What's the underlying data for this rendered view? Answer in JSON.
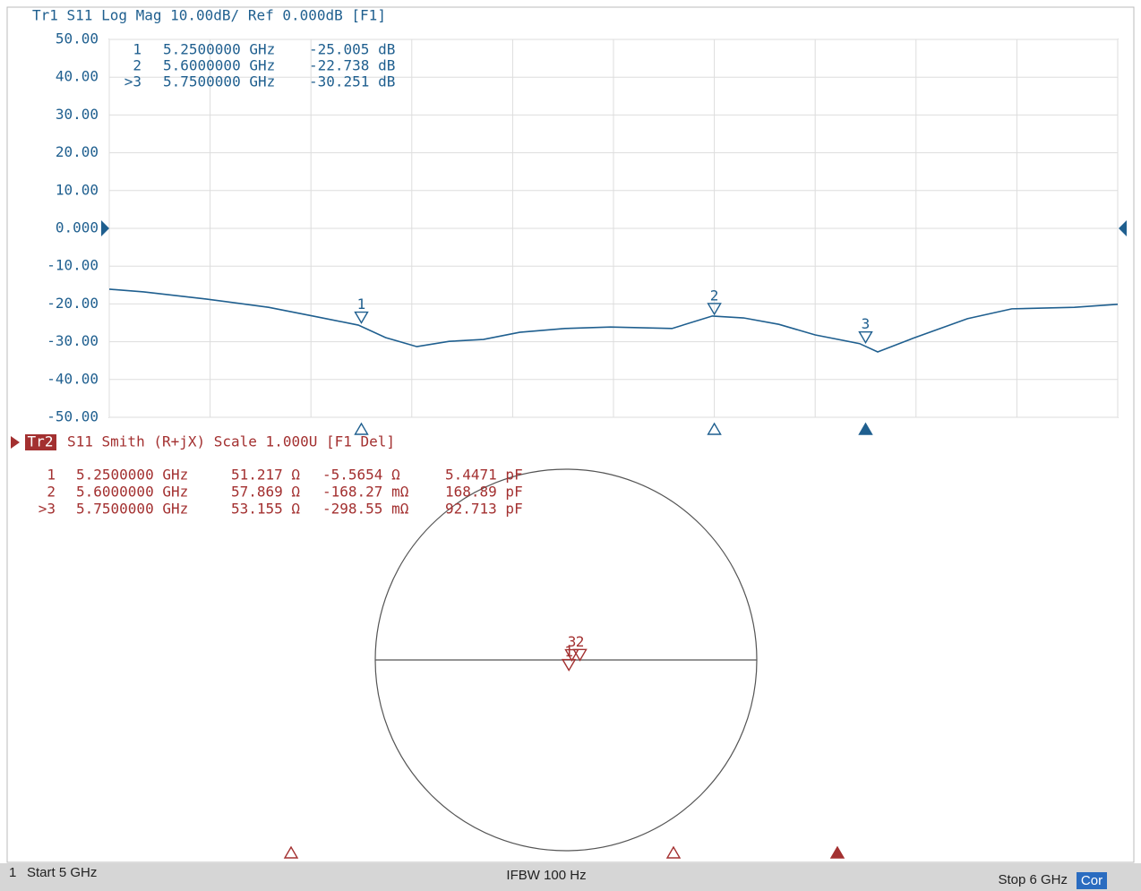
{
  "chart_data": [
    {
      "type": "line",
      "title": "Tr1 S11 Log Mag 10.00dB/ Ref 0.000dB [F1]",
      "color": "#1f5f8f",
      "x": [
        5.0,
        5.034,
        5.096,
        5.158,
        5.202,
        5.247,
        5.274,
        5.305,
        5.337,
        5.371,
        5.407,
        5.452,
        5.497,
        5.558,
        5.598,
        5.629,
        5.664,
        5.7,
        5.744,
        5.762,
        5.797,
        5.851,
        5.895,
        5.957,
        6.0
      ],
      "values": [
        -16.1,
        -16.8,
        -18.7,
        -20.9,
        -23.2,
        -25.6,
        -28.9,
        -31.3,
        -29.9,
        -29.4,
        -27.5,
        -26.5,
        -26.1,
        -26.5,
        -23.2,
        -23.7,
        -25.4,
        -28.2,
        -30.5,
        -32.7,
        -29.1,
        -23.9,
        -21.3,
        -20.9,
        -20.1
      ],
      "xlim": [
        5,
        6
      ],
      "xticks": [
        5,
        5.1,
        5.2,
        5.3,
        5.4,
        5.5,
        5.6,
        5.7,
        5.8,
        5.9,
        6
      ],
      "ylim": [
        -50,
        50
      ],
      "yticks": [
        {
          "value": 50,
          "label": "50.00"
        },
        {
          "value": 40,
          "label": "40.00"
        },
        {
          "value": 30,
          "label": "30.00"
        },
        {
          "value": 20,
          "label": "20.00"
        },
        {
          "value": 10,
          "label": "10.00"
        },
        {
          "value": 0,
          "label": "0.000"
        },
        {
          "value": -10,
          "label": "-10.00"
        },
        {
          "value": -20,
          "label": "-20.00"
        },
        {
          "value": -30,
          "label": "-30.00"
        },
        {
          "value": -40,
          "label": "-40.00"
        },
        {
          "value": -50,
          "label": "-50.00"
        }
      ],
      "grid": true,
      "markers": [
        {
          "id": "1",
          "row_label": "1",
          "frequency": 5.25,
          "frequency_label": "5.2500000 GHz",
          "value": -25.005,
          "value_label": "-25.005 dB"
        },
        {
          "id": "2",
          "row_label": "2",
          "frequency": 5.6,
          "frequency_label": "5.6000000 GHz",
          "value": -22.738,
          "value_label": "-22.738 dB"
        },
        {
          "id": "3",
          "row_label": ">3",
          "frequency": 5.75,
          "frequency_label": "5.7500000 GHz",
          "value": -30.251,
          "value_label": "-30.251 dB",
          "active": true
        }
      ]
    },
    {
      "type": "smith",
      "tag": "Tr2",
      "title": "S11 Smith (R+jX) Scale 1.000U [F1 Del]",
      "color": "#a33030",
      "xlim": [
        5,
        6
      ],
      "markers": [
        {
          "id": "1",
          "row_label": "1",
          "frequency": 5.25,
          "frequency_label": "5.2500000 GHz",
          "resistance": 51.217,
          "resistance_label": "51.217 Ω",
          "reactance": -5.5654,
          "reactance_label": "-5.5654 Ω",
          "capacitance": 5.4471,
          "capacitance_label": "5.4471 pF"
        },
        {
          "id": "2",
          "row_label": "2",
          "frequency": 5.6,
          "frequency_label": "5.6000000 GHz",
          "resistance": 57.869,
          "resistance_label": "57.869 Ω",
          "reactance": -0.16827,
          "reactance_label": "-168.27 mΩ",
          "capacitance": 168.89,
          "capacitance_label": "168.89 pF"
        },
        {
          "id": "3",
          "row_label": ">3",
          "frequency": 5.75,
          "frequency_label": "5.7500000 GHz",
          "resistance": 53.155,
          "resistance_label": "53.155 Ω",
          "reactance": -0.29855,
          "reactance_label": "-298.55 mΩ",
          "capacitance": 92.713,
          "capacitance_label": "92.713 pF",
          "active": true
        }
      ]
    }
  ],
  "footer": {
    "channel": "1",
    "start": "Start 5 GHz",
    "ifbw": "IFBW 100 Hz",
    "stop": "Stop 6 GHz",
    "correction": "Cor"
  }
}
